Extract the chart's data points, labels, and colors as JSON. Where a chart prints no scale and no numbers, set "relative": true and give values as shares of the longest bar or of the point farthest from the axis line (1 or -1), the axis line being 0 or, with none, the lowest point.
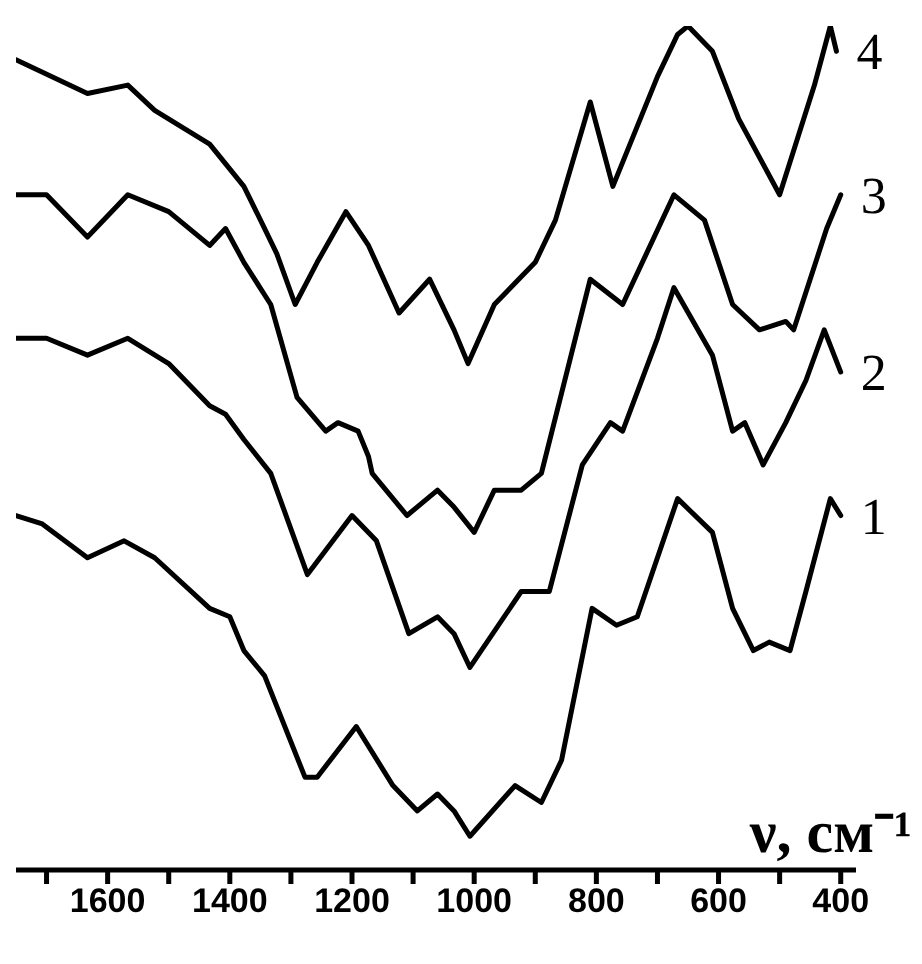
{
  "chart_data": {
    "type": "line",
    "relative": true,
    "xlabel": "ν, см⁻¹",
    "xlim": [
      1750,
      375
    ],
    "xticks": [
      {
        "value": 1700,
        "label": null
      },
      1600,
      {
        "value": 1500,
        "label": null
      },
      1400,
      {
        "value": 1300,
        "label": null
      },
      1200,
      {
        "value": 1100,
        "label": null
      },
      1000,
      {
        "value": 900,
        "label": null
      },
      800,
      {
        "value": 700,
        "label": null
      },
      600,
      {
        "value": 500,
        "label": null
      },
      400
    ],
    "grid": false,
    "legend": false,
    "marker": "none",
    "line_style": "solid",
    "tick_labels": "x",
    "series": [
      {
        "name": "1",
        "color": "#000000",
        "x": [
          1750,
          1707,
          1633,
          1573,
          1523,
          1433,
          1400,
          1377,
          1343,
          1277,
          1257,
          1193,
          1133,
          1093,
          1060,
          1033,
          1007,
          933,
          890,
          857,
          807,
          767,
          733,
          667,
          610,
          577,
          543,
          517,
          483,
          457,
          417,
          400
        ],
        "values": [
          0.42,
          0.41,
          0.37,
          0.39,
          0.37,
          0.31,
          0.3,
          0.26,
          0.23,
          0.11,
          0.11,
          0.17,
          0.1,
          0.07,
          0.09,
          0.07,
          0.04,
          0.1,
          0.08,
          0.13,
          0.31,
          0.29,
          0.3,
          0.44,
          0.4,
          0.31,
          0.26,
          0.27,
          0.26,
          0.33,
          0.44,
          0.42
        ]
      },
      {
        "name": "2",
        "color": "#000000",
        "x": [
          1750,
          1700,
          1633,
          1567,
          1500,
          1433,
          1407,
          1377,
          1333,
          1273,
          1200,
          1160,
          1107,
          1060,
          1033,
          1007,
          923,
          877,
          823,
          777,
          757,
          700,
          673,
          610,
          577,
          557,
          527,
          490,
          457,
          427,
          400
        ],
        "values": [
          0.63,
          0.63,
          0.61,
          0.63,
          0.6,
          0.55,
          0.54,
          0.51,
          0.47,
          0.35,
          0.42,
          0.39,
          0.28,
          0.3,
          0.28,
          0.24,
          0.33,
          0.33,
          0.48,
          0.53,
          0.52,
          0.63,
          0.69,
          0.61,
          0.52,
          0.53,
          0.48,
          0.53,
          0.58,
          0.64,
          0.59
        ]
      },
      {
        "name": "3",
        "color": "#000000",
        "x": [
          1750,
          1700,
          1633,
          1567,
          1500,
          1433,
          1407,
          1377,
          1333,
          1290,
          1243,
          1223,
          1190,
          1173,
          1167,
          1110,
          1060,
          1033,
          1000,
          967,
          923,
          890,
          810,
          757,
          673,
          623,
          577,
          533,
          490,
          477,
          423,
          400
        ],
        "values": [
          0.8,
          0.8,
          0.75,
          0.8,
          0.78,
          0.74,
          0.76,
          0.72,
          0.67,
          0.56,
          0.52,
          0.53,
          0.52,
          0.49,
          0.47,
          0.42,
          0.45,
          0.43,
          0.4,
          0.45,
          0.45,
          0.47,
          0.7,
          0.67,
          0.8,
          0.77,
          0.67,
          0.64,
          0.65,
          0.64,
          0.76,
          0.8
        ]
      },
      {
        "name": "4",
        "color": "#000000",
        "x": [
          1750,
          1633,
          1567,
          1523,
          1433,
          1377,
          1343,
          1323,
          1293,
          1257,
          1210,
          1173,
          1123,
          1073,
          1033,
          1010,
          967,
          900,
          867,
          810,
          773,
          700,
          667,
          650,
          610,
          567,
          500,
          443,
          417,
          407
        ],
        "values": [
          0.96,
          0.92,
          0.93,
          0.9,
          0.86,
          0.81,
          0.76,
          0.73,
          0.67,
          0.72,
          0.78,
          0.74,
          0.66,
          0.7,
          0.64,
          0.6,
          0.67,
          0.72,
          0.77,
          0.91,
          0.81,
          0.94,
          0.99,
          1.0,
          0.97,
          0.89,
          0.8,
          0.93,
          1.0,
          0.97
        ]
      }
    ]
  }
}
